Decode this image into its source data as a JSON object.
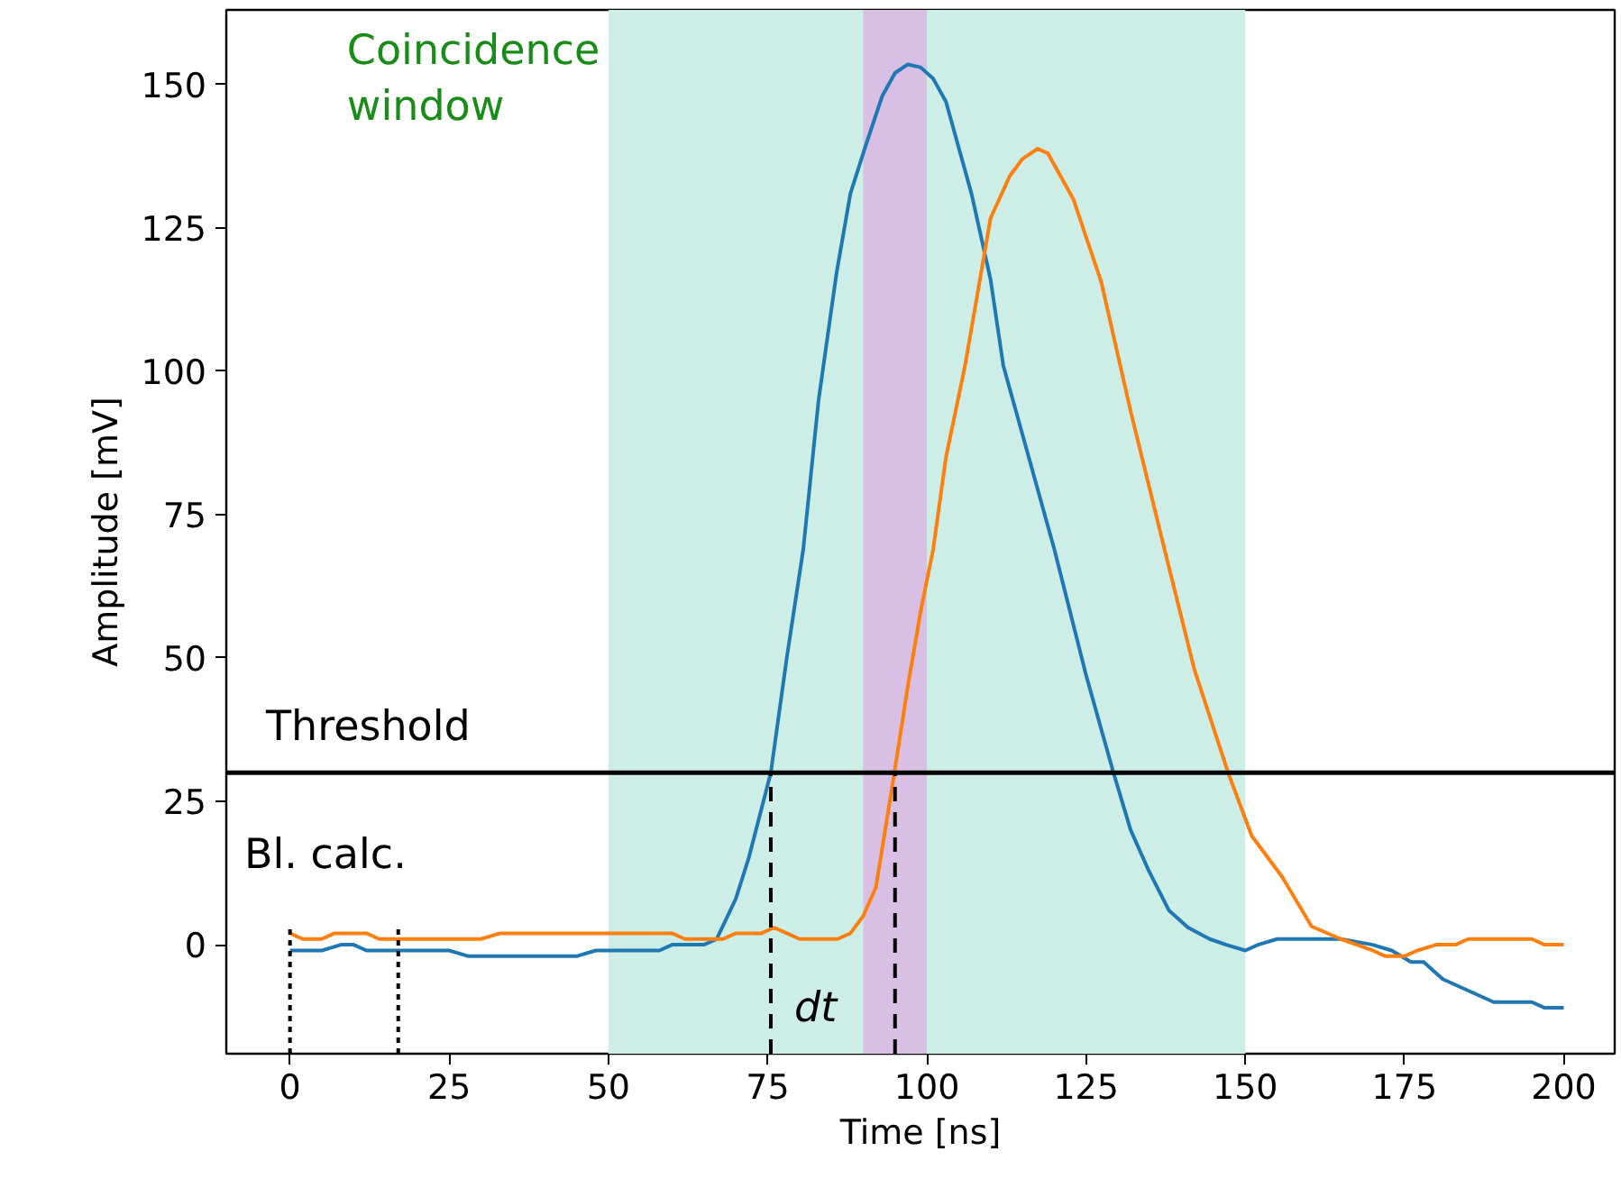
{
  "chart_data": {
    "type": "line",
    "xlabel": "Time [ns]",
    "ylabel": "Amplitude [mV]",
    "xlim": [
      -10,
      208
    ],
    "ylim": [
      -19,
      163
    ],
    "xticks": [
      0,
      25,
      50,
      75,
      100,
      125,
      150,
      175,
      200
    ],
    "yticks": [
      0,
      25,
      50,
      75,
      100,
      125,
      150
    ],
    "grid": false,
    "marker": "none",
    "line_style": "solid",
    "series": [
      {
        "color": "#1f77b4",
        "x": [
          0,
          5,
          8,
          10,
          12,
          15,
          25,
          28,
          45,
          48,
          58,
          60,
          65,
          67,
          70,
          72,
          75.5,
          78,
          80.6,
          83,
          85.8,
          88,
          90.3,
          93,
          95,
          97,
          99,
          101,
          103,
          105,
          107,
          110,
          112,
          116,
          120,
          125,
          129.3,
          132,
          134.8,
          138,
          141,
          144.4,
          147,
          150,
          152,
          155,
          165,
          170,
          173,
          176,
          178,
          181,
          185,
          189,
          195,
          197,
          200
        ],
        "values": [
          -1,
          -1,
          0,
          0,
          -1,
          -1,
          -1,
          -2,
          -2,
          -1,
          -1,
          0,
          0,
          1,
          8,
          15,
          30,
          50,
          69,
          95,
          117,
          131,
          139,
          148,
          152,
          153.5,
          153,
          151,
          147,
          139,
          131,
          116,
          101,
          85,
          69,
          47,
          30,
          20,
          13,
          6,
          3,
          1,
          0,
          -1,
          0,
          1,
          1,
          0,
          -1,
          -3,
          -3,
          -6,
          -8,
          -10,
          -10,
          -11,
          -11
        ]
      },
      {
        "color": "#ff7f0e",
        "x": [
          0,
          2,
          5,
          7,
          12,
          14,
          30,
          33,
          60,
          62,
          68,
          70,
          74,
          76,
          78,
          80,
          86,
          88,
          90,
          92,
          94.9,
          97,
          99,
          101,
          103,
          106,
          110,
          113,
          115,
          117.4,
          119,
          121,
          123,
          127.4,
          132,
          137.3,
          142,
          147.3,
          151,
          155.8,
          160.4,
          165,
          170,
          172,
          175,
          177,
          180,
          183,
          185,
          195,
          197,
          200
        ],
        "values": [
          2,
          1,
          1,
          2,
          2,
          1,
          1,
          2,
          2,
          1,
          1,
          2,
          2,
          3,
          2,
          1,
          1,
          2,
          5,
          10,
          30,
          45,
          58,
          69,
          85,
          101,
          126.7,
          134,
          137,
          138.8,
          138,
          134,
          130,
          115.5,
          93,
          69,
          48,
          30,
          19,
          11.8,
          3.2,
          1,
          -1,
          -2,
          -2,
          -1,
          0,
          0,
          1,
          1,
          0,
          0
        ]
      },
      {
        "color": "#000000",
        "line_style": "dashed",
        "x": [
          75.5,
          75.5
        ],
        "values": [
          -19,
          30
        ]
      },
      {
        "color": "#000000",
        "line_style": "dashed",
        "x": [
          95,
          95
        ],
        "values": [
          -19,
          30
        ]
      },
      {
        "color": "#000000",
        "line_style": "dotted",
        "x": [
          0,
          0
        ],
        "values": [
          -19,
          3
        ]
      },
      {
        "color": "#000000",
        "line_style": "dotted",
        "x": [
          17,
          17
        ],
        "values": [
          -19,
          3
        ]
      }
    ],
    "bands": [
      {
        "axis": "x",
        "from": 50,
        "to": 150,
        "label": "Coincidence\nwindow",
        "color": "#cdeee6"
      },
      {
        "axis": "x",
        "from": 90,
        "to": 100,
        "color": "#d8bfe3"
      }
    ],
    "ref_lines": [
      {
        "axis": "y",
        "value": 30,
        "label": "Threshold",
        "color": "#000000"
      }
    ],
    "annotations": [
      "Bl. calc.",
      "dt"
    ]
  }
}
